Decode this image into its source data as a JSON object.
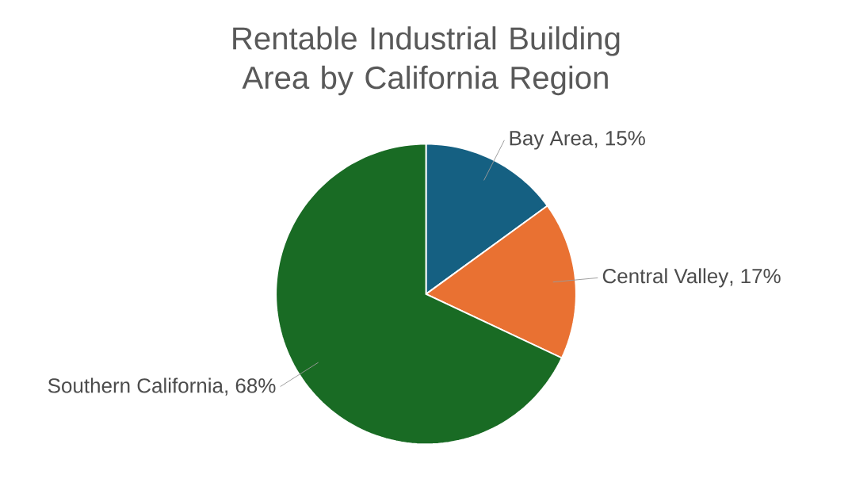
{
  "chart_data": {
    "type": "pie",
    "title": "Rentable Industrial Building Area by California Region",
    "categories": [
      "Bay Area",
      "Central Valley",
      "Southern California"
    ],
    "values": [
      15,
      17,
      68
    ],
    "colors": [
      "#156082",
      "#e97132",
      "#196b24"
    ],
    "value_labels": [
      ", 15%",
      ", 17%",
      ", 68%"
    ],
    "legend": false
  }
}
